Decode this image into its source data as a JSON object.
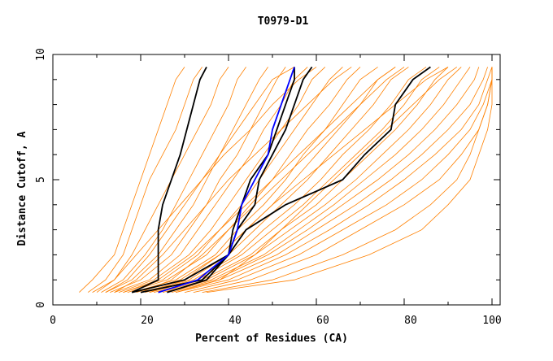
{
  "chart_data": {
    "type": "line",
    "title": "T0979-D1",
    "xlabel": "Percent of Residues (CA)",
    "ylabel": "Distance Cutoff, A",
    "xlim": [
      0,
      102
    ],
    "ylim": [
      0,
      10
    ],
    "x_ticks": [
      "0",
      "20",
      "40",
      "60",
      "80",
      "100"
    ],
    "y_ticks": [
      "0",
      "5",
      "10"
    ],
    "grid": false,
    "colors": {
      "models": "#ff8000",
      "highlight_black": "#000000",
      "highlight_blue": "#0000ff"
    },
    "y_levels": [
      0.5,
      1,
      2,
      3,
      4,
      5,
      6,
      7,
      8,
      9,
      9.5
    ],
    "series_orange": [
      [
        6,
        9,
        14,
        16,
        18,
        20,
        22,
        24,
        26,
        28,
        30
      ],
      [
        8,
        12,
        16,
        18,
        20,
        22,
        25,
        28,
        30,
        32,
        34
      ],
      [
        10,
        14,
        18,
        21,
        24,
        27,
        30,
        33,
        36,
        38,
        40
      ],
      [
        11,
        16,
        21,
        25,
        28,
        31,
        34,
        37,
        40,
        42,
        44
      ],
      [
        12,
        18,
        24,
        28,
        32,
        35,
        38,
        41,
        44,
        47,
        49
      ],
      [
        13,
        20,
        27,
        31,
        35,
        38,
        42,
        45,
        48,
        51,
        53
      ],
      [
        14,
        22,
        29,
        33,
        37,
        41,
        45,
        48,
        52,
        55,
        58
      ],
      [
        15,
        23,
        31,
        36,
        40,
        44,
        48,
        52,
        56,
        59,
        62
      ],
      [
        16,
        25,
        33,
        38,
        43,
        47,
        51,
        55,
        59,
        63,
        66
      ],
      [
        17,
        26,
        35,
        40,
        45,
        50,
        54,
        58,
        63,
        67,
        70
      ],
      [
        18,
        28,
        37,
        42,
        48,
        53,
        57,
        62,
        66,
        70,
        74
      ],
      [
        19,
        29,
        38,
        44,
        50,
        55,
        60,
        65,
        70,
        74,
        78
      ],
      [
        20,
        31,
        40,
        46,
        52,
        58,
        63,
        68,
        73,
        77,
        81
      ],
      [
        21,
        32,
        42,
        48,
        55,
        61,
        66,
        72,
        77,
        81,
        85
      ],
      [
        22,
        33,
        43,
        50,
        57,
        63,
        69,
        75,
        80,
        84,
        88
      ],
      [
        23,
        34,
        45,
        52,
        60,
        66,
        72,
        78,
        83,
        87,
        90
      ],
      [
        24,
        35,
        46,
        54,
        62,
        69,
        75,
        81,
        86,
        90,
        93
      ],
      [
        25,
        36,
        48,
        56,
        64,
        71,
        78,
        84,
        89,
        93,
        95
      ],
      [
        26,
        37,
        49,
        58,
        66,
        74,
        81,
        87,
        92,
        96,
        97
      ],
      [
        27,
        38,
        51,
        60,
        69,
        77,
        84,
        90,
        95,
        98,
        99
      ],
      [
        28,
        40,
        53,
        63,
        72,
        80,
        87,
        93,
        97,
        99,
        100
      ],
      [
        30,
        42,
        56,
        66,
        76,
        84,
        90,
        95,
        98,
        100,
        100
      ],
      [
        32,
        45,
        60,
        70,
        80,
        88,
        93,
        97,
        99,
        100,
        100
      ],
      [
        34,
        50,
        66,
        78,
        86,
        92,
        95,
        97,
        99,
        100,
        100
      ],
      [
        35,
        55,
        72,
        84,
        90,
        95,
        97,
        99,
        100,
        100,
        100
      ],
      [
        28,
        38,
        46,
        52,
        58,
        64,
        70,
        76,
        82,
        88,
        92
      ],
      [
        20,
        27,
        34,
        40,
        46,
        52,
        58,
        64,
        70,
        76,
        80
      ],
      [
        14,
        19,
        25,
        30,
        35,
        40,
        46,
        52,
        58,
        64,
        68
      ],
      [
        9,
        14,
        19,
        24,
        29,
        34,
        39,
        45,
        50,
        56,
        60
      ],
      [
        12,
        17,
        22,
        26,
        30,
        34,
        38,
        42,
        46,
        50,
        55
      ],
      [
        22,
        30,
        38,
        44,
        50,
        57,
        64,
        71,
        78,
        85,
        90
      ],
      [
        16,
        24,
        32,
        38,
        44,
        50,
        56,
        62,
        68,
        74,
        78
      ]
    ],
    "series_black": [
      [
        18,
        24,
        24,
        24,
        25,
        27,
        29,
        30.5,
        32,
        33.5,
        35
      ],
      [
        26,
        35,
        40,
        42,
        46,
        47,
        50,
        53,
        55,
        57,
        59
      ],
      [
        18,
        30,
        40,
        41,
        43,
        45,
        49,
        51,
        53,
        55,
        55
      ],
      [
        20,
        34,
        40,
        44,
        53,
        66,
        71,
        77,
        78,
        82,
        86
      ]
    ],
    "series_blue": [
      24,
      33,
      40,
      42,
      43,
      46,
      49,
      50,
      52,
      54,
      55
    ]
  }
}
